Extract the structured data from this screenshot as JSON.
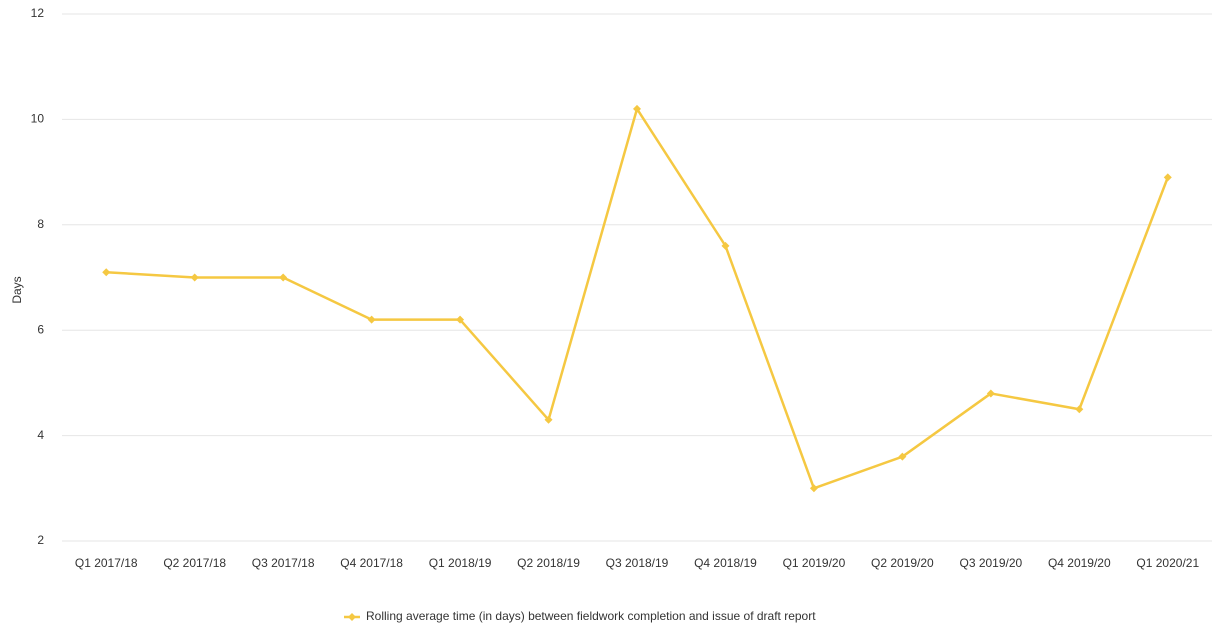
{
  "chart_data": {
    "type": "line",
    "y_label": "Days",
    "categories": [
      "Q1 2017/18",
      "Q2 2017/18",
      "Q3 2017/18",
      "Q4 2017/18",
      "Q1 2018/19",
      "Q2 2018/19",
      "Q3 2018/19",
      "Q4 2018/19",
      "Q1 2019/20",
      "Q2 2019/20",
      "Q3 2019/20",
      "Q4 2019/20",
      "Q1 2020/21"
    ],
    "series": [
      {
        "name": "Rolling average time (in days) between fieldwork completion and issue of draft report",
        "color": "#f5c842",
        "values": [
          7.1,
          7.0,
          7.0,
          6.2,
          6.2,
          4.3,
          10.2,
          7.6,
          3.0,
          3.6,
          4.8,
          4.5,
          8.9
        ]
      }
    ],
    "ylim": [
      2,
      12
    ],
    "yticks": [
      2,
      4,
      6,
      8,
      10,
      12
    ],
    "grid": true,
    "legend": "bottom"
  }
}
